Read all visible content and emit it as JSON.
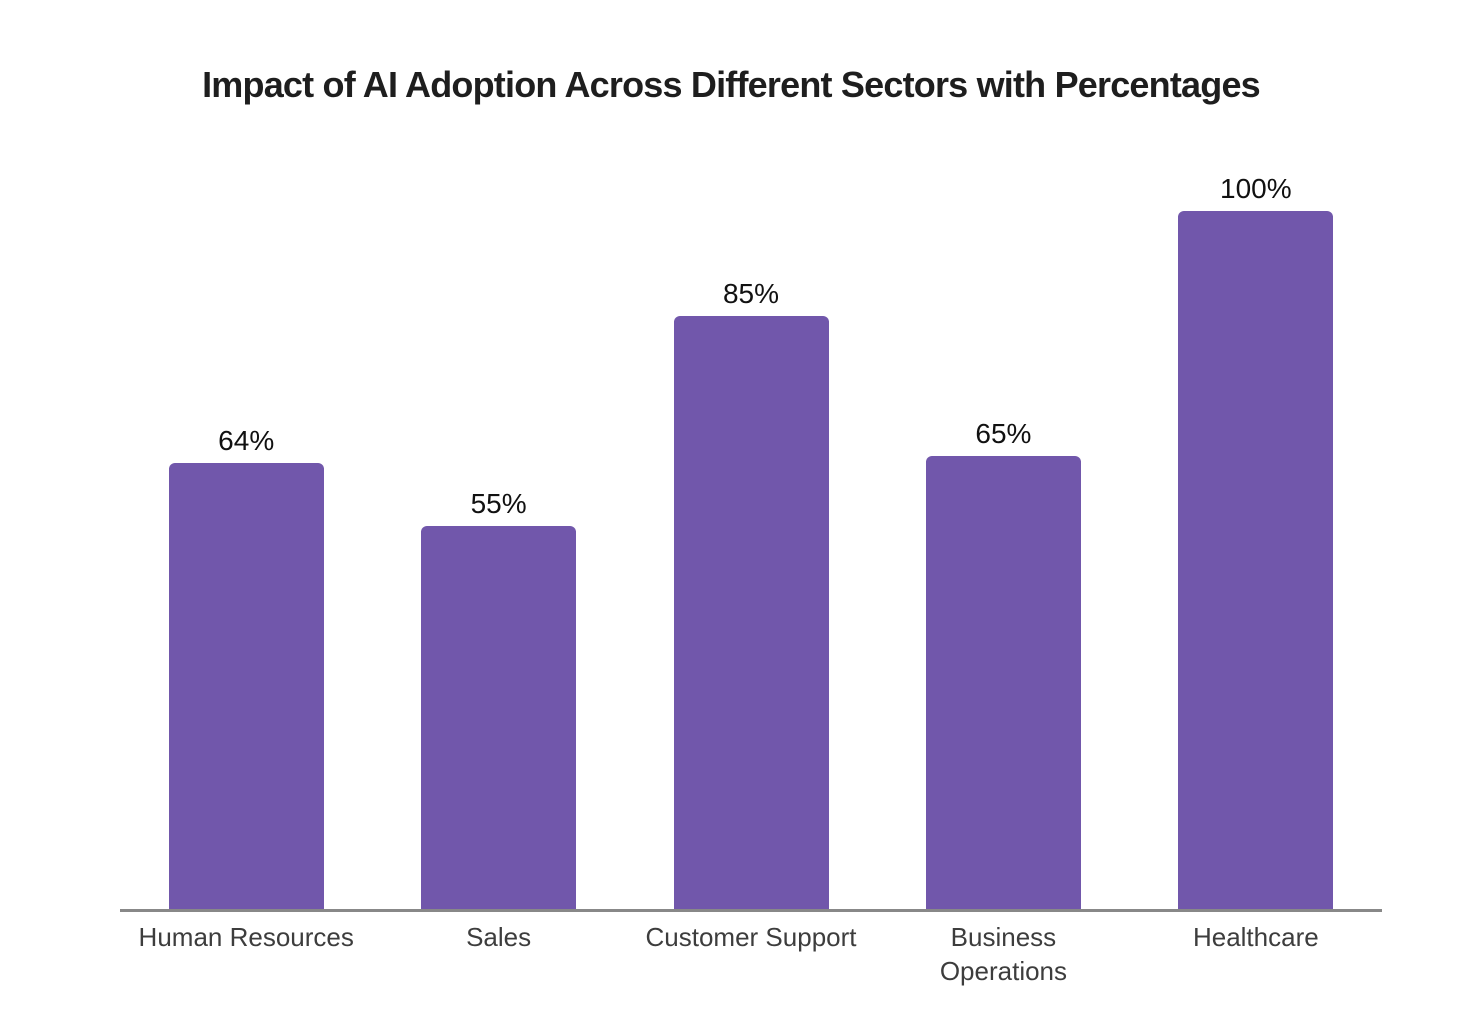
{
  "chart_data": {
    "type": "bar",
    "title": "Impact of AI Adoption Across Different Sectors with Percentages",
    "categories": [
      "Human Resources",
      "Sales",
      "Customer Support",
      "Business Operations",
      "Healthcare"
    ],
    "values": [
      64,
      55,
      85,
      65,
      100
    ],
    "value_labels": [
      "64%",
      "55%",
      "85%",
      "65%",
      "100%"
    ],
    "tick_label_lines": [
      [
        "Human Resources"
      ],
      [
        "Sales"
      ],
      [
        "Customer Support"
      ],
      [
        "Business",
        "Operations"
      ],
      [
        "Healthcare"
      ]
    ],
    "xlabel": "",
    "ylabel": "",
    "ylim": [
      0,
      100
    ],
    "grid": false,
    "legend": "none",
    "colors": {
      "bar": "#7157AB",
      "axis_line": "#888888",
      "title": "#1e1e1e",
      "value_label": "#111111",
      "tick_label": "#3d3d3d",
      "background": "#ffffff"
    }
  }
}
